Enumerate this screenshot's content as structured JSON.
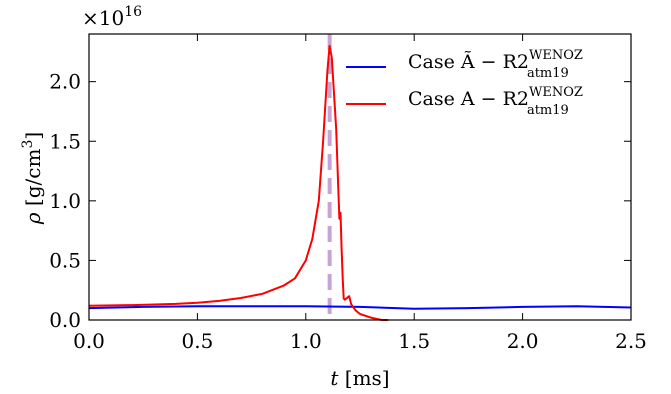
{
  "chart_data": {
    "type": "line",
    "title": "",
    "xlabel_var": "t",
    "xlabel_unit": " [ms]",
    "ylabel_var": "ρ",
    "ylabel_unit": " [g/cm",
    "ylabel_unit_sup": "3",
    "ylabel_unit_end": "]",
    "y_multiplier_base": "×10",
    "y_multiplier_exp": "16",
    "xlim": [
      0.0,
      2.5
    ],
    "ylim": [
      0.0,
      2.4
    ],
    "x_ticks": [
      0.0,
      0.5,
      1.0,
      1.5,
      2.0,
      2.5
    ],
    "x_tick_labels": [
      "0.0",
      "0.5",
      "1.0",
      "1.5",
      "2.0",
      "2.5"
    ],
    "y_ticks": [
      0.0,
      0.5,
      1.0,
      1.5,
      2.0
    ],
    "y_tick_labels": [
      "0.0",
      "0.5",
      "1.0",
      "1.5",
      "2.0"
    ],
    "grid": false,
    "legend_position": "top-right",
    "vline": {
      "x": 1.11,
      "color": "#c9a3d6",
      "style": "dashed"
    },
    "series": [
      {
        "name": "Case Ã − R2",
        "name_sup": "WENOZ",
        "name_sub": "atm19",
        "color": "#0000ff",
        "x": [
          0.0,
          0.25,
          0.5,
          0.75,
          1.0,
          1.25,
          1.5,
          1.75,
          2.0,
          2.25,
          2.5
        ],
        "y": [
          0.1,
          0.11,
          0.115,
          0.115,
          0.115,
          0.11,
          0.095,
          0.1,
          0.11,
          0.115,
          0.105
        ]
      },
      {
        "name": "Case A − R2",
        "name_sup": "WENOZ",
        "name_sub": "atm19",
        "color": "#ff0000",
        "x": [
          0.0,
          0.2,
          0.4,
          0.5,
          0.6,
          0.7,
          0.8,
          0.9,
          0.95,
          1.0,
          1.03,
          1.06,
          1.08,
          1.1,
          1.11,
          1.12,
          1.14,
          1.15,
          1.155,
          1.16,
          1.165,
          1.17,
          1.175,
          1.18,
          1.2,
          1.21,
          1.23,
          1.25,
          1.3,
          1.35,
          1.38
        ],
        "y": [
          0.12,
          0.125,
          0.135,
          0.145,
          0.16,
          0.185,
          0.22,
          0.29,
          0.35,
          0.5,
          0.68,
          1.0,
          1.5,
          2.1,
          2.3,
          2.2,
          1.6,
          1.1,
          0.85,
          0.9,
          0.6,
          0.35,
          0.18,
          0.17,
          0.2,
          0.13,
          0.08,
          0.05,
          0.02,
          0.0,
          0.0
        ]
      }
    ]
  }
}
